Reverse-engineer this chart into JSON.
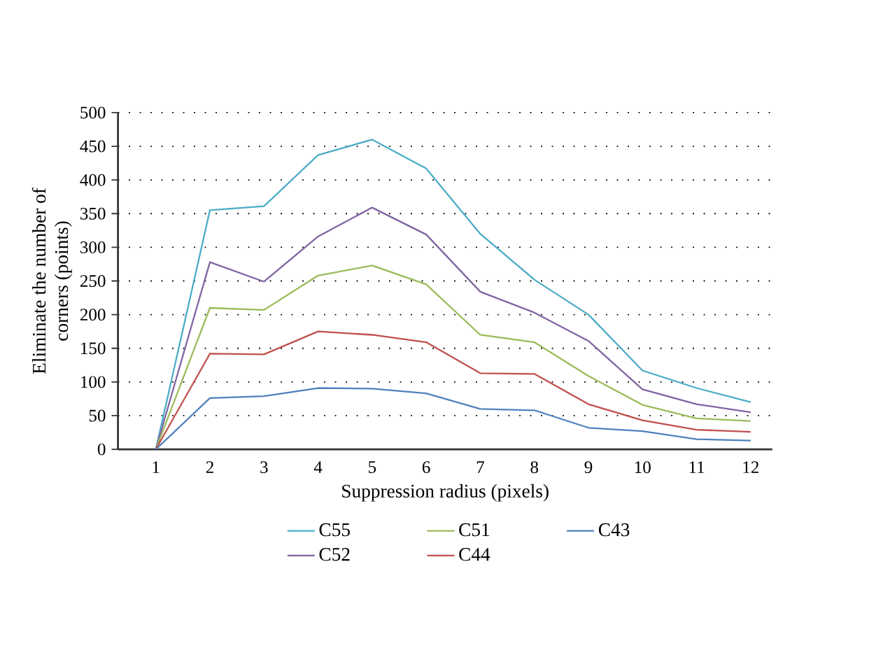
{
  "chart_data": {
    "type": "line",
    "xlabel": "Suppression radius (pixels)",
    "ylabel": "Eliminate the number of corners (points)",
    "categories": [
      "1",
      "2",
      "3",
      "4",
      "5",
      "6",
      "7",
      "8",
      "9",
      "10",
      "11",
      "12"
    ],
    "series": [
      {
        "name": "C55",
        "color": "#4bacc6",
        "values": [
          0,
          355,
          361,
          437,
          460,
          417,
          320,
          252,
          200,
          117,
          91,
          70
        ]
      },
      {
        "name": "C52",
        "color": "#8064a2",
        "values": [
          0,
          278,
          249,
          316,
          359,
          319,
          234,
          203,
          161,
          89,
          67,
          55
        ]
      },
      {
        "name": "C51",
        "color": "#9bbb59",
        "values": [
          0,
          210,
          207,
          258,
          273,
          245,
          170,
          159,
          109,
          66,
          46,
          42
        ]
      },
      {
        "name": "C44",
        "color": "#c0504d",
        "values": [
          0,
          142,
          141,
          175,
          170,
          159,
          113,
          112,
          67,
          43,
          29,
          26
        ]
      },
      {
        "name": "C43",
        "color": "#4f81bd",
        "values": [
          0,
          76,
          79,
          91,
          90,
          83,
          60,
          58,
          32,
          27,
          15,
          13
        ]
      }
    ],
    "ylim": [
      0,
      500
    ],
    "yticks": [
      0,
      50,
      100,
      150,
      200,
      250,
      300,
      350,
      400,
      450,
      500
    ],
    "grid": "y",
    "legend": "bottom",
    "marker": "none",
    "line_style": "solid"
  }
}
